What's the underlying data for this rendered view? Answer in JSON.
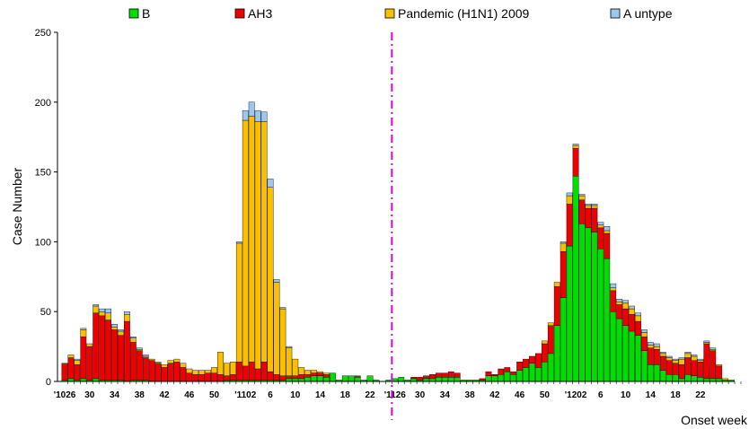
{
  "chart_data": {
    "type": "bar",
    "stacked": true,
    "title": "",
    "xlabel": "Onset week",
    "ylabel": "Case Number",
    "ylim": [
      0,
      250
    ],
    "yticks": [
      0,
      50,
      100,
      150,
      200,
      250
    ],
    "grid": false,
    "legend_position": "top",
    "colors": {
      "B": "#00dd00",
      "AH3": "#ee0000",
      "Pandemic (H1N1) 2009": "#f8c000",
      "A untype": "#9cc8f0",
      "divider": "#e000e0"
    },
    "x_tick_labels": [
      {
        "label": "'1026",
        "index": 0
      },
      {
        "label": "30",
        "index": 4
      },
      {
        "label": "34",
        "index": 8
      },
      {
        "label": "38",
        "index": 12
      },
      {
        "label": "42",
        "index": 16
      },
      {
        "label": "46",
        "index": 20
      },
      {
        "label": "50",
        "index": 24
      },
      {
        "label": "'1102",
        "index": 29
      },
      {
        "label": "6",
        "index": 33
      },
      {
        "label": "10",
        "index": 37
      },
      {
        "label": "14",
        "index": 41
      },
      {
        "label": "18",
        "index": 45
      },
      {
        "label": "22",
        "index": 49
      },
      {
        "label": "'1126",
        "index": 53
      },
      {
        "label": "30",
        "index": 57
      },
      {
        "label": "34",
        "index": 61
      },
      {
        "label": "38",
        "index": 65
      },
      {
        "label": "42",
        "index": 69
      },
      {
        "label": "46",
        "index": 73
      },
      {
        "label": "50",
        "index": 77
      },
      {
        "label": "'1202",
        "index": 82
      },
      {
        "label": "6",
        "index": 86
      },
      {
        "label": "10",
        "index": 90
      },
      {
        "label": "14",
        "index": 94
      },
      {
        "label": "18",
        "index": 98
      },
      {
        "label": "22",
        "index": 102
      }
    ],
    "season_divider_index": 52.5,
    "series": [
      {
        "name": "B",
        "values": [
          1,
          2,
          1,
          2,
          1,
          2,
          1,
          1,
          1,
          1,
          0,
          1,
          1,
          1,
          0,
          0,
          0,
          0,
          0,
          0,
          0,
          0,
          0,
          0,
          0,
          0,
          1,
          1,
          1,
          1,
          1,
          1,
          1,
          1,
          1,
          1,
          2,
          2,
          2,
          3,
          4,
          4,
          3,
          6,
          1,
          4,
          4,
          3,
          1,
          4,
          1,
          0,
          1,
          2,
          3,
          1,
          2,
          1,
          2,
          2,
          3,
          3,
          3,
          3,
          1,
          1,
          1,
          1,
          4,
          4,
          5,
          7,
          5,
          8,
          10,
          13,
          10,
          14,
          20,
          40,
          60,
          97,
          147,
          113,
          110,
          107,
          95,
          88,
          50,
          45,
          40,
          36,
          33,
          22,
          12,
          12,
          8,
          5,
          5,
          2,
          5,
          4,
          3,
          2,
          2,
          2,
          1,
          1,
          0
        ]
      },
      {
        "name": "AH3",
        "values": [
          12,
          15,
          11,
          30,
          24,
          47,
          46,
          43,
          36,
          32,
          43,
          27,
          21,
          16,
          15,
          13,
          10,
          13,
          14,
          10,
          6,
          5,
          5,
          6,
          6,
          5,
          3,
          4,
          13,
          10,
          13,
          8,
          13,
          6,
          4,
          3,
          2,
          2,
          3,
          2,
          2,
          2,
          2,
          0,
          0,
          0,
          0,
          1,
          0,
          0,
          0,
          0,
          0,
          0,
          0,
          0,
          1,
          2,
          2,
          3,
          3,
          3,
          4,
          3,
          0,
          0,
          0,
          1,
          3,
          1,
          4,
          3,
          2,
          6,
          6,
          5,
          10,
          13,
          20,
          28,
          33,
          30,
          20,
          17,
          14,
          17,
          15,
          18,
          15,
          10,
          12,
          12,
          10,
          10,
          12,
          11,
          10,
          10,
          8,
          10,
          12,
          11,
          11,
          25,
          20,
          9,
          0,
          0,
          0
        ]
      },
      {
        "name": "Pandemic (H1N1) 2009",
        "values": [
          0,
          2,
          3,
          5,
          2,
          5,
          3,
          5,
          2,
          3,
          5,
          3,
          1,
          1,
          1,
          1,
          2,
          2,
          2,
          3,
          3,
          3,
          3,
          2,
          4,
          16,
          9,
          9,
          85,
          176,
          176,
          177,
          172,
          132,
          66,
          48,
          20,
          12,
          5,
          3,
          2,
          1,
          1,
          0,
          0,
          0,
          0,
          0,
          0,
          0,
          0,
          0,
          0,
          0,
          0,
          0,
          0,
          0,
          0,
          0,
          0,
          0,
          0,
          0,
          0,
          0,
          0,
          0,
          0,
          0,
          0,
          0,
          0,
          0,
          0,
          0,
          0,
          2,
          2,
          3,
          6,
          6,
          2,
          3,
          2,
          2,
          2,
          2,
          2,
          2,
          4,
          4,
          4,
          3,
          2,
          2,
          2,
          2,
          2,
          4,
          3,
          3,
          1,
          1,
          1,
          1,
          1,
          0,
          0
        ]
      },
      {
        "name": "A untype",
        "values": [
          0,
          0,
          1,
          1,
          0,
          1,
          2,
          3,
          2,
          1,
          2,
          1,
          1,
          1,
          0,
          0,
          0,
          0,
          0,
          0,
          0,
          0,
          0,
          0,
          0,
          0,
          0,
          0,
          1,
          7,
          10,
          8,
          7,
          6,
          2,
          1,
          1,
          0,
          0,
          0,
          0,
          0,
          0,
          0,
          0,
          0,
          0,
          0,
          0,
          0,
          0,
          0,
          0,
          0,
          0,
          0,
          0,
          0,
          0,
          0,
          0,
          0,
          0,
          0,
          0,
          0,
          0,
          0,
          0,
          0,
          0,
          0,
          0,
          0,
          0,
          0,
          0,
          0,
          0,
          0,
          1,
          2,
          1,
          1,
          1,
          1,
          2,
          3,
          3,
          2,
          2,
          2,
          2,
          2,
          2,
          2,
          1,
          1,
          1,
          1,
          1,
          1,
          1,
          1,
          1,
          0,
          0,
          0,
          0
        ]
      }
    ]
  }
}
